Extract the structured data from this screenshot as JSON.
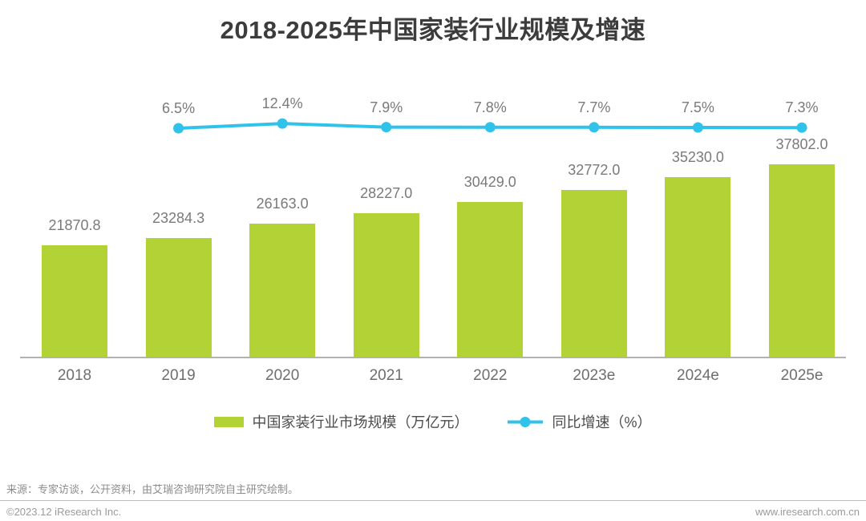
{
  "title": "2018-2025年中国家装行业规模及增速",
  "chart_data": {
    "type": "bar+line combo",
    "title": "2018-2025年中国家装行业规模及增速",
    "categories": [
      "2018",
      "2019",
      "2020",
      "2021",
      "2022",
      "2023e",
      "2024e",
      "2025e"
    ],
    "series": [
      {
        "name": "中国家装行业市场规模（万亿元）",
        "type": "bar",
        "color": "#B2D235",
        "values": [
          21870.8,
          23284.3,
          26163.0,
          28227.0,
          30429.0,
          32772.0,
          35230.0,
          37802.0
        ]
      },
      {
        "name": "同比增速（%）",
        "type": "line",
        "color": "#2FC2EB",
        "x": [
          "2019",
          "2020",
          "2021",
          "2022",
          "2023e",
          "2024e",
          "2025e"
        ],
        "values": [
          6.5,
          12.4,
          7.9,
          7.8,
          7.7,
          7.5,
          7.3
        ]
      }
    ],
    "data_labels": true,
    "grid": false,
    "axes_visible": "x-only",
    "legend_position": "bottom"
  },
  "legend": {
    "bar_label": "中国家装行业市场规模（万亿元）",
    "line_label": "同比增速（%）"
  },
  "footer": {
    "source": "来源：专家访谈，公开资料，由艾瑞咨询研究院自主研究绘制。",
    "copyright": "©2023.12 iResearch Inc.",
    "website": "www.iresearch.com.cn"
  },
  "colors": {
    "bar": "#B2D235",
    "line": "#2FC2EB",
    "title_text": "#3C3C3C",
    "label_text": "#7A7A7A",
    "axis": "#B2B2B2"
  }
}
